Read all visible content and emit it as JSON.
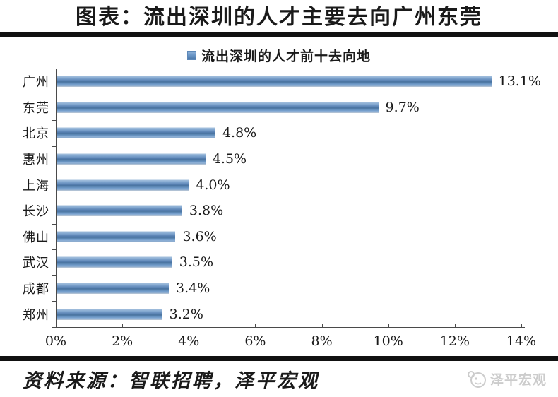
{
  "figure": {
    "title": "图表：流出深圳的人才主要去向广州东莞"
  },
  "chart_data": {
    "type": "bar",
    "orientation": "horizontal",
    "legend": "流出深圳的人才前十去向地",
    "legend_position": "top",
    "categories": [
      "广州",
      "东莞",
      "北京",
      "惠州",
      "上海",
      "长沙",
      "佛山",
      "武汉",
      "成都",
      "郑州"
    ],
    "values": [
      13.1,
      9.7,
      4.8,
      4.5,
      4.0,
      3.8,
      3.6,
      3.5,
      3.4,
      3.2
    ],
    "value_labels": [
      "13.1%",
      "9.7%",
      "4.8%",
      "4.5%",
      "4.0%",
      "3.8%",
      "3.6%",
      "3.5%",
      "3.4%",
      "3.2%"
    ],
    "x_ticks": [
      "0%",
      "2%",
      "4%",
      "6%",
      "8%",
      "10%",
      "12%",
      "14%"
    ],
    "x_tick_values": [
      0,
      2,
      4,
      6,
      8,
      10,
      12,
      14
    ],
    "xlim": [
      0,
      14
    ],
    "grid": false,
    "bar_color": "#6b97c7",
    "bar_color_dark": "#49739f",
    "bar_color_light": "#a9c3df"
  },
  "footer": {
    "source": "资料来源：智联招聘，泽平宏观",
    "brand": "泽平宏观"
  }
}
